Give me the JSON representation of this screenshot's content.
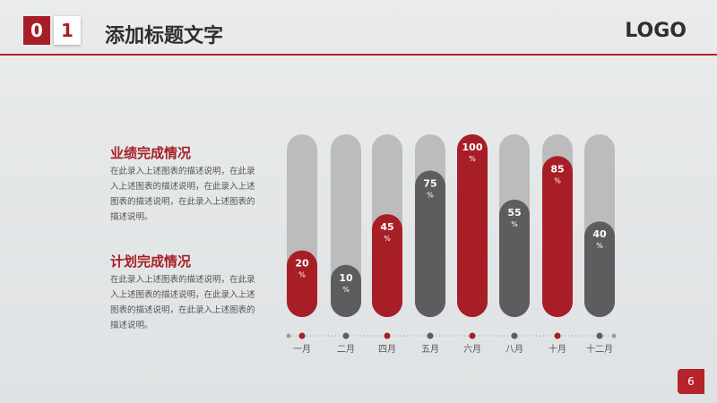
{
  "header": {
    "num_a": "0",
    "num_b": "1",
    "title": "添加标题文字",
    "logo": "LOGO"
  },
  "sections": [
    {
      "title": "业绩完成情况",
      "body": "在此录入上述图表的描述说明，在此录入上述图表的描述说明，在此录入上述图表的描述说明，在此录入上述图表的描述说明。"
    },
    {
      "title": "计划完成情况",
      "body": "在此录入上述图表的描述说明，在此录入上述图表的描述说明，在此录入上述图表的描述说明，在此录入上述图表的描述说明。"
    }
  ],
  "page_number": "6",
  "colors": {
    "red": "#a81e27",
    "dark": "#5d5d5f",
    "track": "#bcbcbd"
  },
  "chart_data": {
    "type": "bar",
    "categories": [
      "一月",
      "二月",
      "四月",
      "五月",
      "六月",
      "八月",
      "十月",
      "十二月"
    ],
    "values": [
      20,
      10,
      45,
      75,
      100,
      55,
      85,
      40
    ],
    "value_labels": [
      "20",
      "10",
      "45",
      "75",
      "100",
      "55",
      "85",
      "40"
    ],
    "unit": "%",
    "bar_colors": [
      "red",
      "dark",
      "red",
      "dark",
      "red",
      "dark",
      "red",
      "dark"
    ],
    "ylim": [
      0,
      100
    ]
  }
}
